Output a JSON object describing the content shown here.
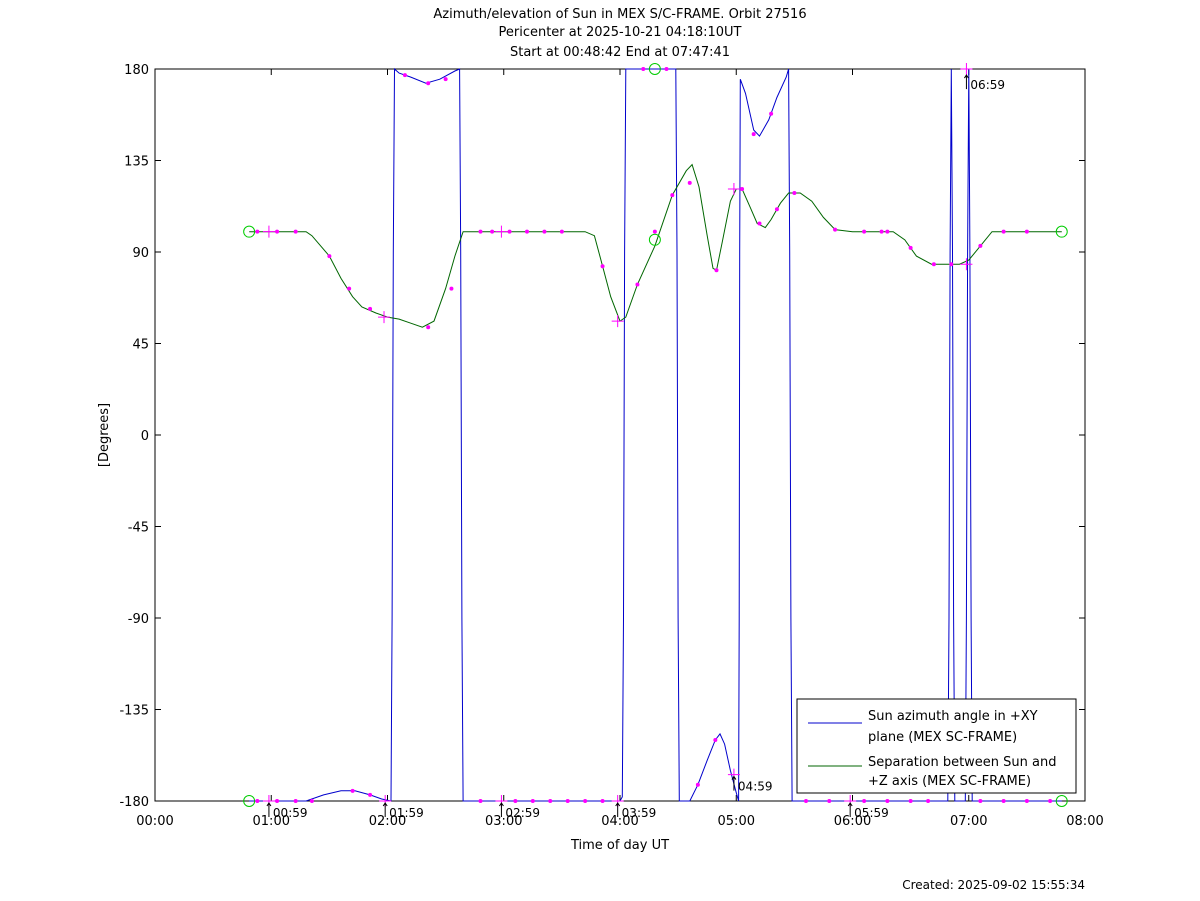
{
  "chart_data": {
    "type": "line",
    "title_lines": [
      "Azimuth/elevation of Sun in MEX S/C-FRAME.  Orbit 27516",
      "Pericenter at 2025-10-21 04:18:10UT",
      "Start at 00:48:42 End at 07:47:41"
    ],
    "xlabel": "Time of day UT",
    "ylabel": "[Degrees]",
    "xlim": [
      0,
      8
    ],
    "ylim": [
      -180,
      180
    ],
    "xticks": [
      {
        "v": 0,
        "label": "00:00"
      },
      {
        "v": 1,
        "label": "01:00"
      },
      {
        "v": 2,
        "label": "02:00"
      },
      {
        "v": 3,
        "label": "03:00"
      },
      {
        "v": 4,
        "label": "04:00"
      },
      {
        "v": 5,
        "label": "05:00"
      },
      {
        "v": 6,
        "label": "06:00"
      },
      {
        "v": 7,
        "label": "07:00"
      },
      {
        "v": 8,
        "label": "08:00"
      }
    ],
    "yticks": [
      {
        "v": 180,
        "label": "180"
      },
      {
        "v": 135,
        "label": "135"
      },
      {
        "v": 90,
        "label": "90"
      },
      {
        "v": 45,
        "label": "45"
      },
      {
        "v": 0,
        "label": "0"
      },
      {
        "v": -45,
        "label": "-45"
      },
      {
        "v": -90,
        "label": "-90"
      },
      {
        "v": -135,
        "label": "-135"
      },
      {
        "v": -180,
        "label": "-180"
      }
    ],
    "grid": false,
    "legend_position": "bottom-right",
    "series": [
      {
        "name_lines": [
          "Sun azimuth angle in +XY",
          "plane (MEX SC-FRAME)"
        ],
        "color": "#0000cc",
        "points": [
          [
            0.81,
            -180
          ],
          [
            0.95,
            -180
          ],
          [
            1.1,
            -180
          ],
          [
            1.3,
            -180
          ],
          [
            1.45,
            -177
          ],
          [
            1.6,
            -175
          ],
          [
            1.72,
            -175
          ],
          [
            1.85,
            -177
          ],
          [
            1.95,
            -179
          ],
          [
            2.03,
            -180
          ],
          [
            2.04,
            -90
          ],
          [
            2.05,
            90
          ],
          [
            2.06,
            180
          ],
          [
            2.1,
            178
          ],
          [
            2.2,
            176
          ],
          [
            2.33,
            173
          ],
          [
            2.45,
            175
          ],
          [
            2.58,
            179
          ],
          [
            2.62,
            180
          ],
          [
            2.63,
            90
          ],
          [
            2.64,
            -90
          ],
          [
            2.65,
            -180
          ],
          [
            2.8,
            -180
          ],
          [
            3.0,
            -180
          ],
          [
            3.5,
            -180
          ],
          [
            4.0,
            -180
          ],
          [
            4.02,
            -178
          ],
          [
            4.03,
            -90
          ],
          [
            4.04,
            90
          ],
          [
            4.05,
            180
          ],
          [
            4.3,
            180
          ],
          [
            4.48,
            180
          ],
          [
            4.49,
            90
          ],
          [
            4.5,
            -90
          ],
          [
            4.51,
            -180
          ],
          [
            4.6,
            -180
          ],
          [
            4.67,
            -172
          ],
          [
            4.75,
            -160
          ],
          [
            4.82,
            -150
          ],
          [
            4.86,
            -147
          ],
          [
            4.9,
            -152
          ],
          [
            4.95,
            -165
          ],
          [
            5.0,
            -176
          ],
          [
            5.02,
            -180
          ],
          [
            5.025,
            -90
          ],
          [
            5.03,
            90
          ],
          [
            5.035,
            175
          ],
          [
            5.08,
            168
          ],
          [
            5.15,
            150
          ],
          [
            5.2,
            147
          ],
          [
            5.28,
            155
          ],
          [
            5.35,
            166
          ],
          [
            5.43,
            176
          ],
          [
            5.45,
            180
          ],
          [
            5.46,
            90
          ],
          [
            5.47,
            -90
          ],
          [
            5.48,
            -180
          ],
          [
            5.7,
            -180
          ],
          [
            6.0,
            -180
          ],
          [
            6.5,
            -180
          ],
          [
            6.8,
            -180
          ],
          [
            6.82,
            -180
          ],
          [
            6.83,
            -90
          ],
          [
            6.84,
            90
          ],
          [
            6.85,
            180
          ],
          [
            6.86,
            90
          ],
          [
            6.87,
            -90
          ],
          [
            6.88,
            -180
          ],
          [
            6.97,
            -180
          ],
          [
            6.98,
            -90
          ],
          [
            6.99,
            90
          ],
          [
            7.0,
            180
          ],
          [
            7.01,
            90
          ],
          [
            7.02,
            -90
          ],
          [
            7.03,
            -180
          ],
          [
            7.4,
            -180
          ],
          [
            7.8,
            -180
          ]
        ]
      },
      {
        "name_lines": [
          "Separation between Sun and",
          "+Z axis (MEX SC-FRAME)"
        ],
        "color": "#006600",
        "points": [
          [
            0.81,
            100
          ],
          [
            1.0,
            100
          ],
          [
            1.3,
            100
          ],
          [
            1.35,
            98
          ],
          [
            1.5,
            88
          ],
          [
            1.6,
            77
          ],
          [
            1.7,
            68
          ],
          [
            1.78,
            63
          ],
          [
            1.9,
            60
          ],
          [
            2.0,
            58
          ],
          [
            2.1,
            57
          ],
          [
            2.2,
            55
          ],
          [
            2.3,
            53
          ],
          [
            2.4,
            56
          ],
          [
            2.5,
            72
          ],
          [
            2.58,
            88
          ],
          [
            2.65,
            100
          ],
          [
            2.8,
            100
          ],
          [
            3.0,
            100
          ],
          [
            3.5,
            100
          ],
          [
            3.7,
            100
          ],
          [
            3.78,
            98
          ],
          [
            3.85,
            83
          ],
          [
            3.92,
            68
          ],
          [
            4.0,
            56
          ],
          [
            4.05,
            58
          ],
          [
            4.15,
            74
          ],
          [
            4.3,
            93
          ],
          [
            4.45,
            118
          ],
          [
            4.57,
            130
          ],
          [
            4.62,
            133
          ],
          [
            4.68,
            122
          ],
          [
            4.75,
            98
          ],
          [
            4.8,
            82
          ],
          [
            4.83,
            81
          ],
          [
            4.88,
            95
          ],
          [
            4.95,
            115
          ],
          [
            5.0,
            121
          ],
          [
            5.05,
            121
          ],
          [
            5.12,
            112
          ],
          [
            5.18,
            104
          ],
          [
            5.25,
            102
          ],
          [
            5.3,
            106
          ],
          [
            5.38,
            114
          ],
          [
            5.45,
            119
          ],
          [
            5.55,
            119
          ],
          [
            5.65,
            115
          ],
          [
            5.75,
            107
          ],
          [
            5.85,
            101
          ],
          [
            6.0,
            100
          ],
          [
            6.2,
            100
          ],
          [
            6.35,
            100
          ],
          [
            6.45,
            96
          ],
          [
            6.55,
            88
          ],
          [
            6.68,
            84
          ],
          [
            6.8,
            84
          ],
          [
            6.92,
            84
          ],
          [
            7.0,
            86
          ],
          [
            7.1,
            93
          ],
          [
            7.2,
            100
          ],
          [
            7.4,
            100
          ],
          [
            7.6,
            100
          ],
          [
            7.8,
            100
          ]
        ],
        "markers": [
          [
            0.88,
            100
          ],
          [
            1.05,
            100
          ],
          [
            1.21,
            100
          ],
          [
            1.5,
            88
          ],
          [
            1.67,
            72
          ],
          [
            1.85,
            62
          ],
          [
            2.35,
            53
          ],
          [
            2.55,
            72
          ],
          [
            2.8,
            100
          ],
          [
            2.9,
            100
          ],
          [
            3.05,
            100
          ],
          [
            3.2,
            100
          ],
          [
            3.35,
            100
          ],
          [
            3.5,
            100
          ],
          [
            3.85,
            83
          ],
          [
            4.15,
            74
          ],
          [
            4.3,
            100
          ],
          [
            4.45,
            118
          ],
          [
            4.6,
            124
          ],
          [
            4.83,
            81
          ],
          [
            5.05,
            121
          ],
          [
            5.2,
            104
          ],
          [
            5.35,
            111
          ],
          [
            5.5,
            119
          ],
          [
            5.85,
            101
          ],
          [
            6.1,
            100
          ],
          [
            6.25,
            100
          ],
          [
            6.3,
            100
          ],
          [
            6.5,
            92
          ],
          [
            6.7,
            84
          ],
          [
            6.85,
            84
          ],
          [
            7.1,
            93
          ],
          [
            7.3,
            100
          ],
          [
            7.5,
            100
          ]
        ]
      }
    ],
    "event_markers": [
      {
        "x": 0.81,
        "y": 100,
        "kind": "circle"
      },
      {
        "x": 7.8,
        "y": 100,
        "kind": "circle"
      },
      {
        "x": 0.81,
        "y": -180,
        "kind": "circle"
      },
      {
        "x": 7.8,
        "y": -180,
        "kind": "circle"
      },
      {
        "x": 4.3,
        "y": 180,
        "kind": "circle"
      },
      {
        "x": 4.3,
        "y": 96,
        "kind": "circle"
      },
      {
        "x": 0.98,
        "y": 100,
        "kind": "plus"
      },
      {
        "x": 2.98,
        "y": 100,
        "kind": "plus"
      },
      {
        "x": 3.98,
        "y": 56,
        "kind": "plus"
      },
      {
        "x": 4.98,
        "y": 121,
        "kind": "plus"
      },
      {
        "x": 6.98,
        "y": 84,
        "kind": "plus"
      },
      {
        "x": 1.97,
        "y": 58,
        "kind": "plus"
      },
      {
        "x": 0.98,
        "y": -180,
        "kind": "plus"
      },
      {
        "x": 1.98,
        "y": -180,
        "kind": "plus"
      },
      {
        "x": 2.98,
        "y": -180,
        "kind": "plus"
      },
      {
        "x": 3.98,
        "y": -180,
        "kind": "plus"
      },
      {
        "x": 4.98,
        "y": -167,
        "kind": "plus"
      },
      {
        "x": 5.98,
        "y": -180,
        "kind": "plus"
      },
      {
        "x": 6.98,
        "y": 180,
        "kind": "plus"
      }
    ],
    "annotations": [
      {
        "x": 0.98,
        "y": -180,
        "label": "00:59",
        "side": "below"
      },
      {
        "x": 1.98,
        "y": -180,
        "label": "01:59",
        "side": "below"
      },
      {
        "x": 2.98,
        "y": -180,
        "label": "02:59",
        "side": "below"
      },
      {
        "x": 3.98,
        "y": -180,
        "label": "03:59",
        "side": "below"
      },
      {
        "x": 4.98,
        "y": -167,
        "label": "04:59",
        "side": "below"
      },
      {
        "x": 5.98,
        "y": -180,
        "label": "05:59",
        "side": "below"
      },
      {
        "x": 6.98,
        "y": 178,
        "label": "06:59",
        "side": "below"
      }
    ]
  },
  "footer": {
    "created": "Created: 2025-09-02 15:55:34"
  }
}
